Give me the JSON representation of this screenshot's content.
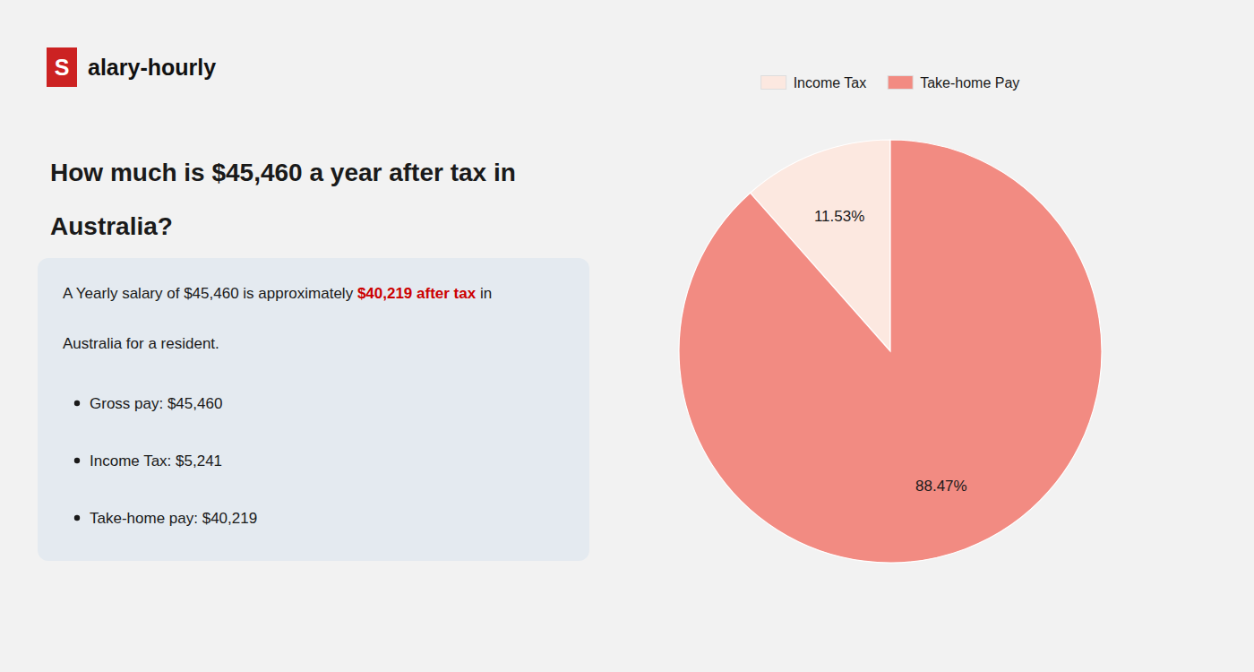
{
  "chart_data": {
    "type": "pie",
    "title": [
      "How much is $45,460 a year after tax in",
      "Australia?"
    ],
    "annotations": [
      [
        {
          "text": "S",
          "color": "#cc2222"
        },
        {
          "text": "alary-hourly"
        }
      ],
      [
        {
          "text": "A Yearly salary of $45,460 is approximately "
        },
        {
          "text": "$40,219 after tax",
          "color": "#cc0000"
        },
        {
          "text": " in"
        }
      ],
      [
        {
          "text": "Australia for a resident."
        }
      ],
      [
        {
          "text": "Gross pay: $45,460"
        }
      ],
      [
        {
          "text": "Income Tax: $5,241"
        }
      ],
      [
        {
          "text": "Take-home pay: $40,219"
        }
      ]
    ],
    "categories": [
      "Income Tax",
      "Take-home Pay"
    ],
    "values": [
      11.53,
      88.47
    ],
    "value_labels": [
      "11.53%",
      "88.47%"
    ],
    "colors": [
      "#fce8e0",
      "#f28b82"
    ],
    "data_labels": true,
    "legend": "top"
  }
}
